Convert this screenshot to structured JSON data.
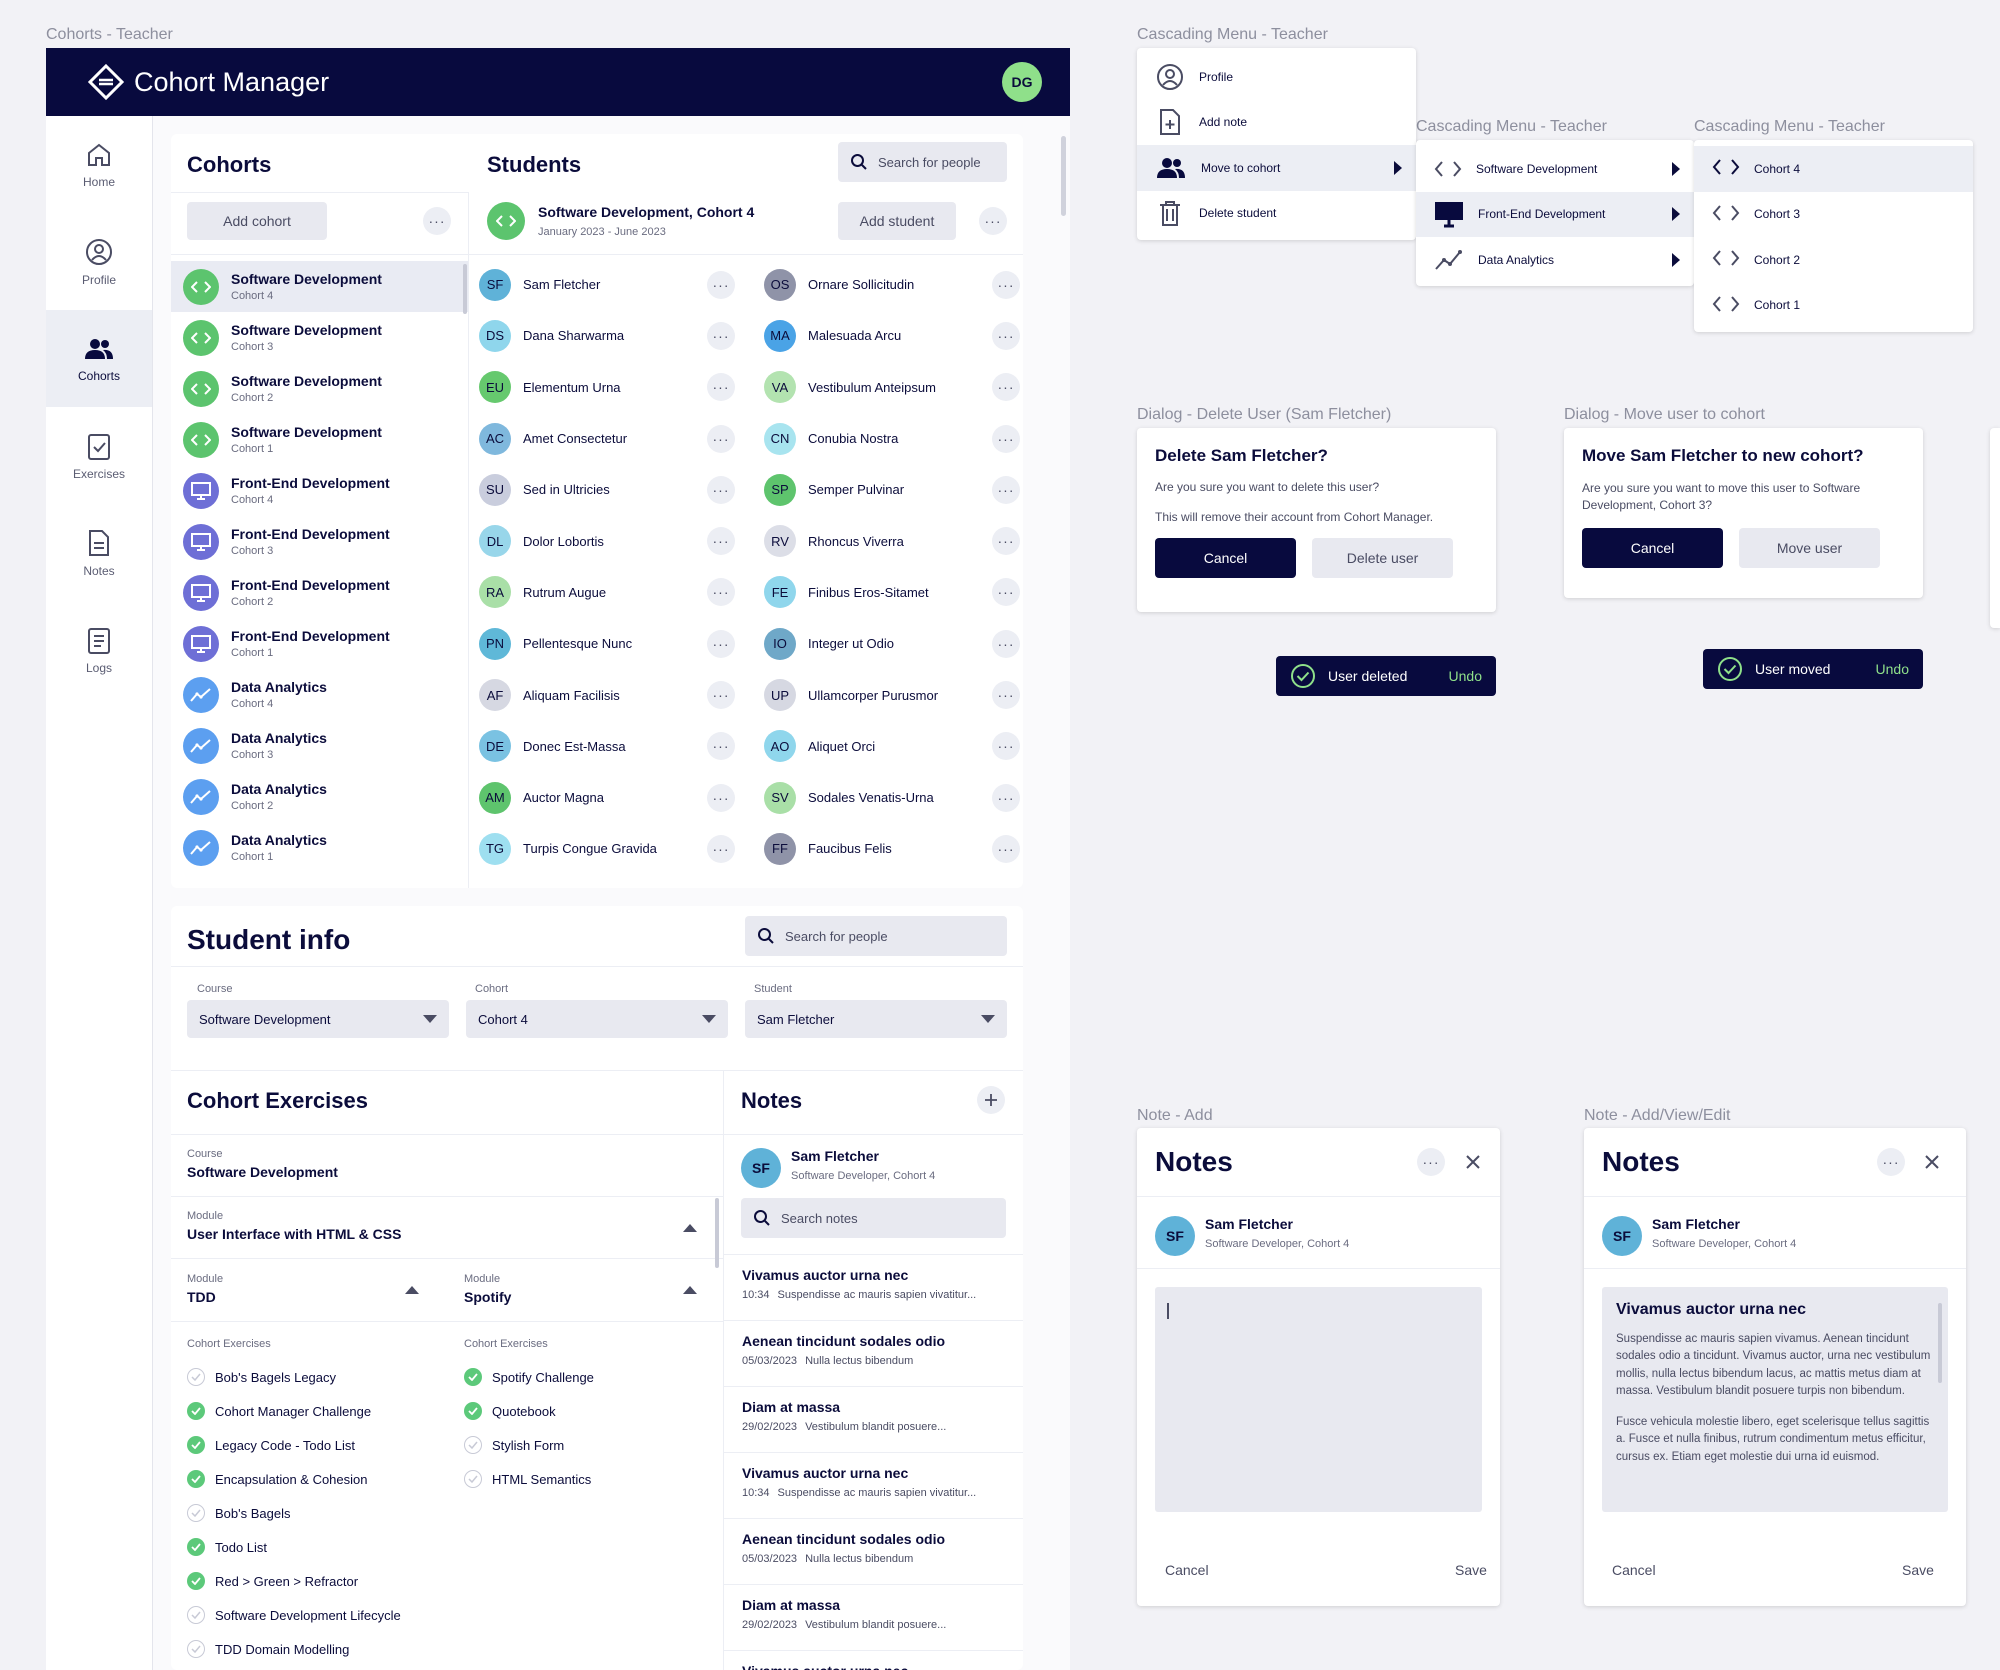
{
  "frame_labels": {
    "main": "Cohorts - Teacher",
    "menu1": "Cascading Menu - Teacher",
    "menu2": "Cascading Menu - Teacher",
    "menu3": "Cascading Menu - Teacher",
    "dialog_delete": "Dialog - Delete User (Sam Fletcher)",
    "dialog_move": "Dialog - Move user to cohort",
    "note_add": "Note - Add",
    "note_edit": "Note - Add/View/Edit"
  },
  "header": {
    "app_title": "Cohort Manager",
    "user_initials": "DG"
  },
  "sidebar": {
    "items": [
      {
        "label": "Home",
        "icon": "home-icon"
      },
      {
        "label": "Profile",
        "icon": "profile-icon"
      },
      {
        "label": "Cohorts",
        "icon": "people-icon"
      },
      {
        "label": "Exercises",
        "icon": "clipboard-check-icon"
      },
      {
        "label": "Notes",
        "icon": "document-icon"
      },
      {
        "label": "Logs",
        "icon": "list-icon"
      }
    ]
  },
  "cohorts": {
    "title": "Cohorts",
    "add_label": "Add cohort",
    "items": [
      {
        "title": "Software Development",
        "sub": "Cohort 4",
        "kind": "code"
      },
      {
        "title": "Software Development",
        "sub": "Cohort 3",
        "kind": "code"
      },
      {
        "title": "Software Development",
        "sub": "Cohort 2",
        "kind": "code"
      },
      {
        "title": "Software Development",
        "sub": "Cohort 1",
        "kind": "code"
      },
      {
        "title": "Front-End Development",
        "sub": "Cohort 4",
        "kind": "monitor"
      },
      {
        "title": "Front-End Development",
        "sub": "Cohort 3",
        "kind": "monitor"
      },
      {
        "title": "Front-End Development",
        "sub": "Cohort 2",
        "kind": "monitor"
      },
      {
        "title": "Front-End Development",
        "sub": "Cohort 1",
        "kind": "monitor"
      },
      {
        "title": "Data Analytics",
        "sub": "Cohort 4",
        "kind": "chart"
      },
      {
        "title": "Data Analytics",
        "sub": "Cohort 3",
        "kind": "chart"
      },
      {
        "title": "Data Analytics",
        "sub": "Cohort 2",
        "kind": "chart"
      },
      {
        "title": "Data Analytics",
        "sub": "Cohort 1",
        "kind": "chart"
      }
    ]
  },
  "students": {
    "title": "Students",
    "search_placeholder": "Search for people",
    "cohort_title": "Software Development, Cohort 4",
    "cohort_dates": "January 2023 - June 2023",
    "add_label": "Add student",
    "left": [
      {
        "i": "SF",
        "name": "Sam Fletcher",
        "c": "#5fb2d8"
      },
      {
        "i": "DS",
        "name": "Dana Sharwarma",
        "c": "#8fd6ec"
      },
      {
        "i": "EU",
        "name": "Elementum Urna",
        "c": "#66c96e"
      },
      {
        "i": "AC",
        "name": "Amet Consectetur",
        "c": "#7fb8dd"
      },
      {
        "i": "SU",
        "name": "Sed in Ultricies",
        "c": "#c9cddd"
      },
      {
        "i": "DL",
        "name": "Dolor Lobortis",
        "c": "#98d6ea"
      },
      {
        "i": "RA",
        "name": "Rutrum Augue",
        "c": "#a9dfa7"
      },
      {
        "i": "PN",
        "name": "Pellentesque Nunc",
        "c": "#5fb8d8"
      },
      {
        "i": "AF",
        "name": "Aliquam Facilisis",
        "c": "#d6d8e2"
      },
      {
        "i": "DE",
        "name": "Donec Est-Massa",
        "c": "#7ac2e2"
      },
      {
        "i": "AM",
        "name": "Auctor Magna",
        "c": "#5ec46d"
      },
      {
        "i": "TG",
        "name": "Turpis Congue Gravida",
        "c": "#9edff0"
      }
    ],
    "right": [
      {
        "i": "OS",
        "name": "Ornare Sollicitudin",
        "c": "#8f93a8"
      },
      {
        "i": "MA",
        "name": "Malesuada Arcu",
        "c": "#4aa3e6"
      },
      {
        "i": "VA",
        "name": "Vestibulum Anteipsum",
        "c": "#b3e3b0"
      },
      {
        "i": "CN",
        "name": "Conubia Nostra",
        "c": "#a8e4ef"
      },
      {
        "i": "SP",
        "name": "Semper Pulvinar",
        "c": "#5ec46d"
      },
      {
        "i": "RV",
        "name": "Rhoncus Viverra",
        "c": "#dcdee7"
      },
      {
        "i": "FE",
        "name": "Finibus Eros-Sitamet",
        "c": "#8fd6ec"
      },
      {
        "i": "IO",
        "name": "Integer ut Odio",
        "c": "#6fa8c8"
      },
      {
        "i": "UP",
        "name": "Ullamcorper Purusmor",
        "c": "#d6d8e2"
      },
      {
        "i": "AO",
        "name": "Aliquet Orci",
        "c": "#8fd6ec"
      },
      {
        "i": "SV",
        "name": "Sodales Venatis-Urna",
        "c": "#a9dfa7"
      },
      {
        "i": "FF",
        "name": "Faucibus Felis",
        "c": "#8f93a8"
      }
    ]
  },
  "student_info": {
    "title": "Student info",
    "search_placeholder": "Search for people",
    "fields": [
      {
        "label": "Course",
        "value": "Software Development"
      },
      {
        "label": "Cohort",
        "value": "Cohort 4"
      },
      {
        "label": "Student",
        "value": "Sam Fletcher"
      }
    ]
  },
  "exercises": {
    "title": "Cohort Exercises",
    "course_label": "Course",
    "course_value": "Software Development",
    "module_label": "Module",
    "module_value": "User Interface with HTML & CSS",
    "left_module_label": "Module",
    "left_module_value": "TDD",
    "right_module_label": "Module",
    "right_module_value": "Spotify",
    "list_label": "Cohort Exercises",
    "left": [
      {
        "t": "Bob's Bagels Legacy",
        "d": false
      },
      {
        "t": "Cohort Manager Challenge",
        "d": true
      },
      {
        "t": "Legacy Code - Todo List",
        "d": true
      },
      {
        "t": "Encapsulation & Cohesion",
        "d": true
      },
      {
        "t": "Bob's Bagels",
        "d": false
      },
      {
        "t": "Todo List",
        "d": true
      },
      {
        "t": "Red > Green > Refractor",
        "d": true
      },
      {
        "t": "Software Development Lifecycle",
        "d": false
      },
      {
        "t": "TDD Domain Modelling",
        "d": false
      }
    ],
    "right": [
      {
        "t": "Spotify Challenge",
        "d": true
      },
      {
        "t": "Quotebook",
        "d": true
      },
      {
        "t": "Stylish Form",
        "d": false
      },
      {
        "t": "HTML Semantics",
        "d": false
      }
    ]
  },
  "notes": {
    "title": "Notes",
    "student_name": "Sam Fletcher",
    "student_role": "Software Developer, Cohort 4",
    "student_initials": "SF",
    "search_placeholder": "Search notes",
    "items": [
      {
        "t": "Vivamus auctor urna nec",
        "time": "10:34",
        "p": "Suspendisse ac mauris sapien vivatitur..."
      },
      {
        "t": "Aenean tincidunt sodales odio",
        "time": "05/03/2023",
        "p": "Nulla lectus bibendum"
      },
      {
        "t": "Diam at massa",
        "time": "29/02/2023",
        "p": "Vestibulum blandit posuere..."
      },
      {
        "t": "Vivamus auctor urna nec",
        "time": "10:34",
        "p": "Suspendisse ac mauris sapien vivatitur..."
      },
      {
        "t": "Aenean tincidunt sodales odio",
        "time": "05/03/2023",
        "p": "Nulla lectus bibendum"
      },
      {
        "t": "Diam at massa",
        "time": "29/02/2023",
        "p": "Vestibulum blandit posuere..."
      },
      {
        "t": "Vivamus auctor urna nec",
        "time": "",
        "p": ""
      }
    ]
  },
  "menu1": {
    "items": [
      {
        "label": "Profile",
        "icon": "profile-icon"
      },
      {
        "label": "Add note",
        "icon": "add-note-icon"
      },
      {
        "label": "Move to cohort",
        "icon": "people-icon"
      },
      {
        "label": "Delete student",
        "icon": "trash-icon"
      }
    ]
  },
  "menu2": {
    "items": [
      {
        "label": "Software Development",
        "icon": "code-icon"
      },
      {
        "label": "Front-End Development",
        "icon": "monitor-icon"
      },
      {
        "label": "Data Analytics",
        "icon": "chart-icon"
      }
    ]
  },
  "menu3": {
    "items": [
      {
        "label": "Cohort 4"
      },
      {
        "label": "Cohort 3"
      },
      {
        "label": "Cohort 2"
      },
      {
        "label": "Cohort 1"
      }
    ]
  },
  "dialog_delete": {
    "title": "Delete Sam Fletcher?",
    "line1": "Are you sure you want to delete this user?",
    "line2": "This will remove their account from Cohort Manager.",
    "cancel": "Cancel",
    "confirm": "Delete user"
  },
  "dialog_move": {
    "title": "Move Sam Fletcher to new cohort?",
    "line1": "Are you sure you want to move this user to Software Development, Cohort 3?",
    "cancel": "Cancel",
    "confirm": "Move user"
  },
  "toast_deleted": {
    "text": "User deleted",
    "action": "Undo"
  },
  "toast_moved": {
    "text": "User moved",
    "action": "Undo"
  },
  "note_add": {
    "title": "Notes",
    "name": "Sam Fletcher",
    "role": "Software Developer, Cohort 4",
    "initials": "SF",
    "cancel": "Cancel",
    "save": "Save"
  },
  "note_edit": {
    "title": "Notes",
    "name": "Sam Fletcher",
    "role": "Software Developer, Cohort 4",
    "initials": "SF",
    "note_title": "Vivamus auctor urna nec",
    "para1": "Suspendisse ac mauris sapien vivamus. Aenean tincidunt sodales odio a tincidunt. Vivamus auctor, urna nec vestibulum mollis, nulla lectus bibendum lacus, ac mattis metus diam at massa. Vestibulum blandit posuere turpis non bibendum.",
    "para2": "Fusce vehicula molestie libero, eget scelerisque tellus sagittis a. Fusce et nulla finibus, rutrum condimentum metus efficitur, cursus ex. Etiam eget molestie dui urna id euismod.",
    "cancel": "Cancel",
    "save": "Save"
  },
  "colors": {
    "navy": "#080a3e",
    "green": "#5cc97a",
    "code": "#5cc46e",
    "monitor": "#6e6fd6",
    "chart": "#5c9ff0"
  }
}
